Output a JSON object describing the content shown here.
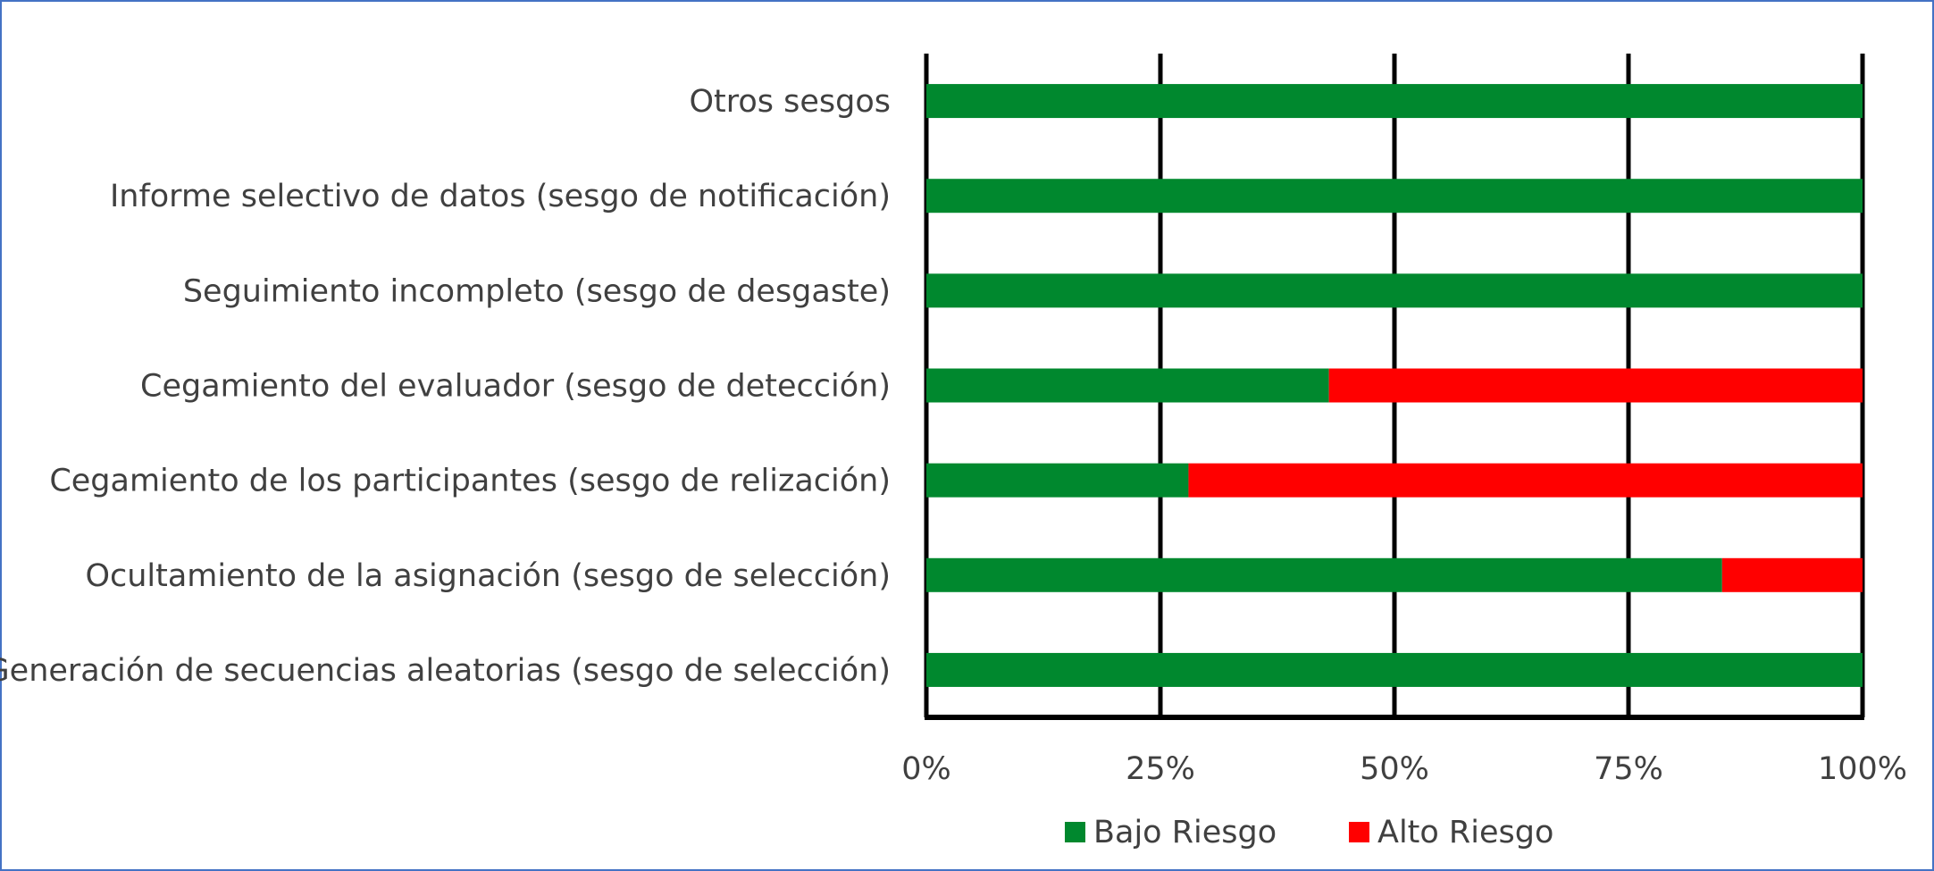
{
  "chart_data": {
    "type": "bar",
    "orientation": "horizontal",
    "stacked": true,
    "title": "",
    "xlabel": "",
    "ylabel": "",
    "categories": [
      "Otros sesgos",
      "Informe selectivo de datos (sesgo de notificación)",
      "Seguimiento incompleto (sesgo de desgaste)",
      "Cegamiento del evaluador (sesgo de detección)",
      "Cegamiento de los participantes (sesgo de relización)",
      "Ocultamiento de la asignación (sesgo de selección)",
      "Generación de secuencias aleatorias (sesgo de selección)"
    ],
    "series": [
      {
        "name": "Bajo Riesgo",
        "color": "#00882E",
        "values": [
          100,
          100,
          100,
          43,
          28,
          85,
          100
        ]
      },
      {
        "name": "Alto Riesgo",
        "color": "#FF0000",
        "values": [
          0,
          0,
          0,
          57,
          72,
          15,
          0
        ]
      }
    ],
    "xlim": [
      0,
      100
    ],
    "x_ticks": [
      "0%",
      "25%",
      "50%",
      "75%",
      "100%"
    ],
    "grid": true,
    "legend_position": "bottom",
    "border_color": "#4472C4"
  }
}
